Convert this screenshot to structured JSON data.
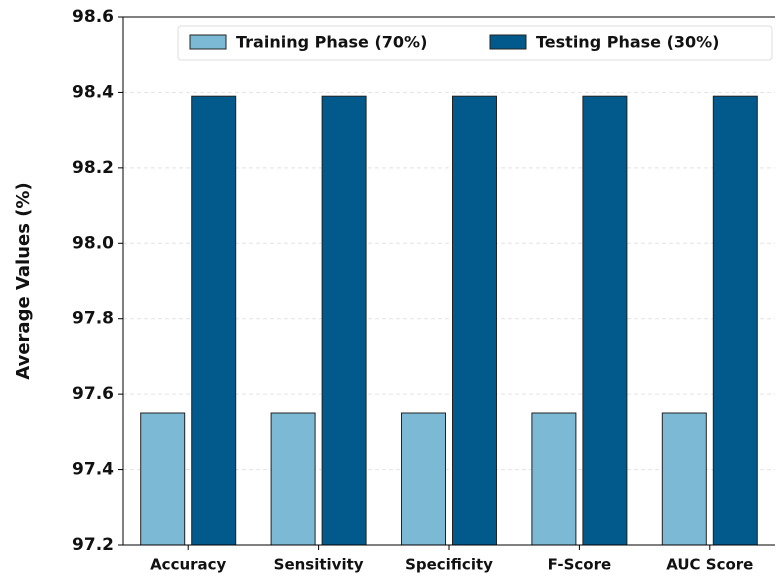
{
  "chart_data": {
    "type": "bar",
    "y_label": "Average Values (%)",
    "categories": [
      "Accuracy",
      "Sensitivity",
      "Specificity",
      "F-Score",
      "AUC Score"
    ],
    "series": [
      {
        "name": "Training Phase (70%)",
        "color": "#7bb9d4",
        "values": [
          97.55,
          97.55,
          97.55,
          97.55,
          97.55
        ]
      },
      {
        "name": "Testing Phase (30%)",
        "color": "#02598c",
        "values": [
          98.39,
          98.39,
          98.39,
          98.39,
          98.39
        ]
      }
    ],
    "ylim": [
      97.2,
      98.6
    ],
    "yticks": [
      97.2,
      97.4,
      97.6,
      97.8,
      {
        "value": 98,
        "label": "98.0"
      },
      98.2,
      98.4,
      98.6
    ],
    "grid": true,
    "legend": "top"
  }
}
